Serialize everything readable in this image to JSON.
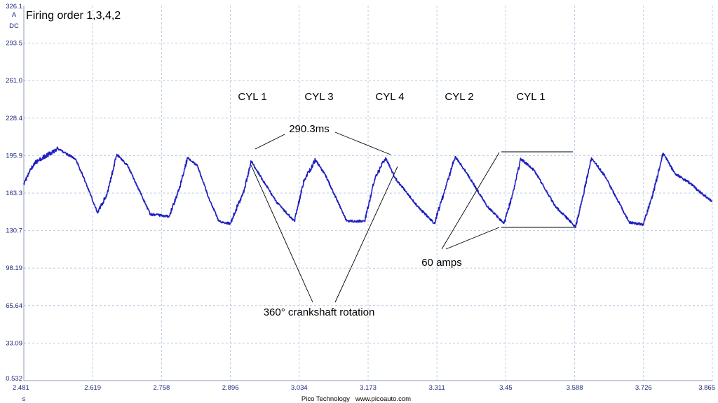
{
  "chart_data": {
    "type": "line",
    "title": "Firing order 1,3,4,2",
    "y_unit": "A",
    "y_coupling": "DC",
    "x_unit": "s",
    "footer": "Pico Technology   www.picoauto.com",
    "xlim": [
      2.481,
      3.865
    ],
    "ylim": [
      0.532,
      326.1
    ],
    "grid": true,
    "x_ticks": [
      "2.481",
      "2.619",
      "2.758",
      "2.896",
      "3.034",
      "3.173",
      "3.311",
      "3.45",
      "3.588",
      "3.726",
      "3.865"
    ],
    "y_ticks": [
      "326.1",
      "293.5",
      "261.0",
      "228.4",
      "195.9",
      "163.3",
      "130.7",
      "98.19",
      "65.64",
      "33.09",
      "0.532"
    ],
    "series": [
      {
        "color": "#1f1fbf",
        "x": [
          2.481,
          2.493,
          2.501,
          2.549,
          2.585,
          2.605,
          2.629,
          2.648,
          2.668,
          2.69,
          2.735,
          2.773,
          2.792,
          2.81,
          2.83,
          2.853,
          2.873,
          2.896,
          2.924,
          2.938,
          2.968,
          2.99,
          3.025,
          3.044,
          3.067,
          3.086,
          3.13,
          3.166,
          3.186,
          3.208,
          3.228,
          3.27,
          3.306,
          3.326,
          3.348,
          3.371,
          3.412,
          3.446,
          3.462,
          3.48,
          3.507,
          3.549,
          3.59,
          3.603,
          3.622,
          3.649,
          3.698,
          3.726,
          3.747,
          3.766,
          3.79,
          3.82,
          3.835,
          3.865
        ],
        "y": [
          172,
          182,
          189,
          202,
          193,
          173,
          146,
          162,
          197,
          187,
          145,
          143,
          165,
          194,
          187,
          159,
          139,
          137,
          166,
          191,
          170,
          155,
          139,
          174,
          192,
          180,
          139,
          139,
          175,
          194,
          176,
          153,
          137,
          164,
          195,
          181,
          152,
          137,
          160,
          193,
          183,
          152,
          134,
          157,
          194,
          178,
          138,
          136,
          165,
          198,
          180,
          172,
          166,
          156
        ]
      }
    ]
  },
  "annotations": {
    "cyl_labels": [
      "CYL 1",
      "CYL 3",
      "CYL 4",
      "CYL 2",
      "CYL 1"
    ],
    "period": "290.3ms",
    "rotation": "360° crankshaft rotation",
    "amplitude": "60 amps"
  }
}
